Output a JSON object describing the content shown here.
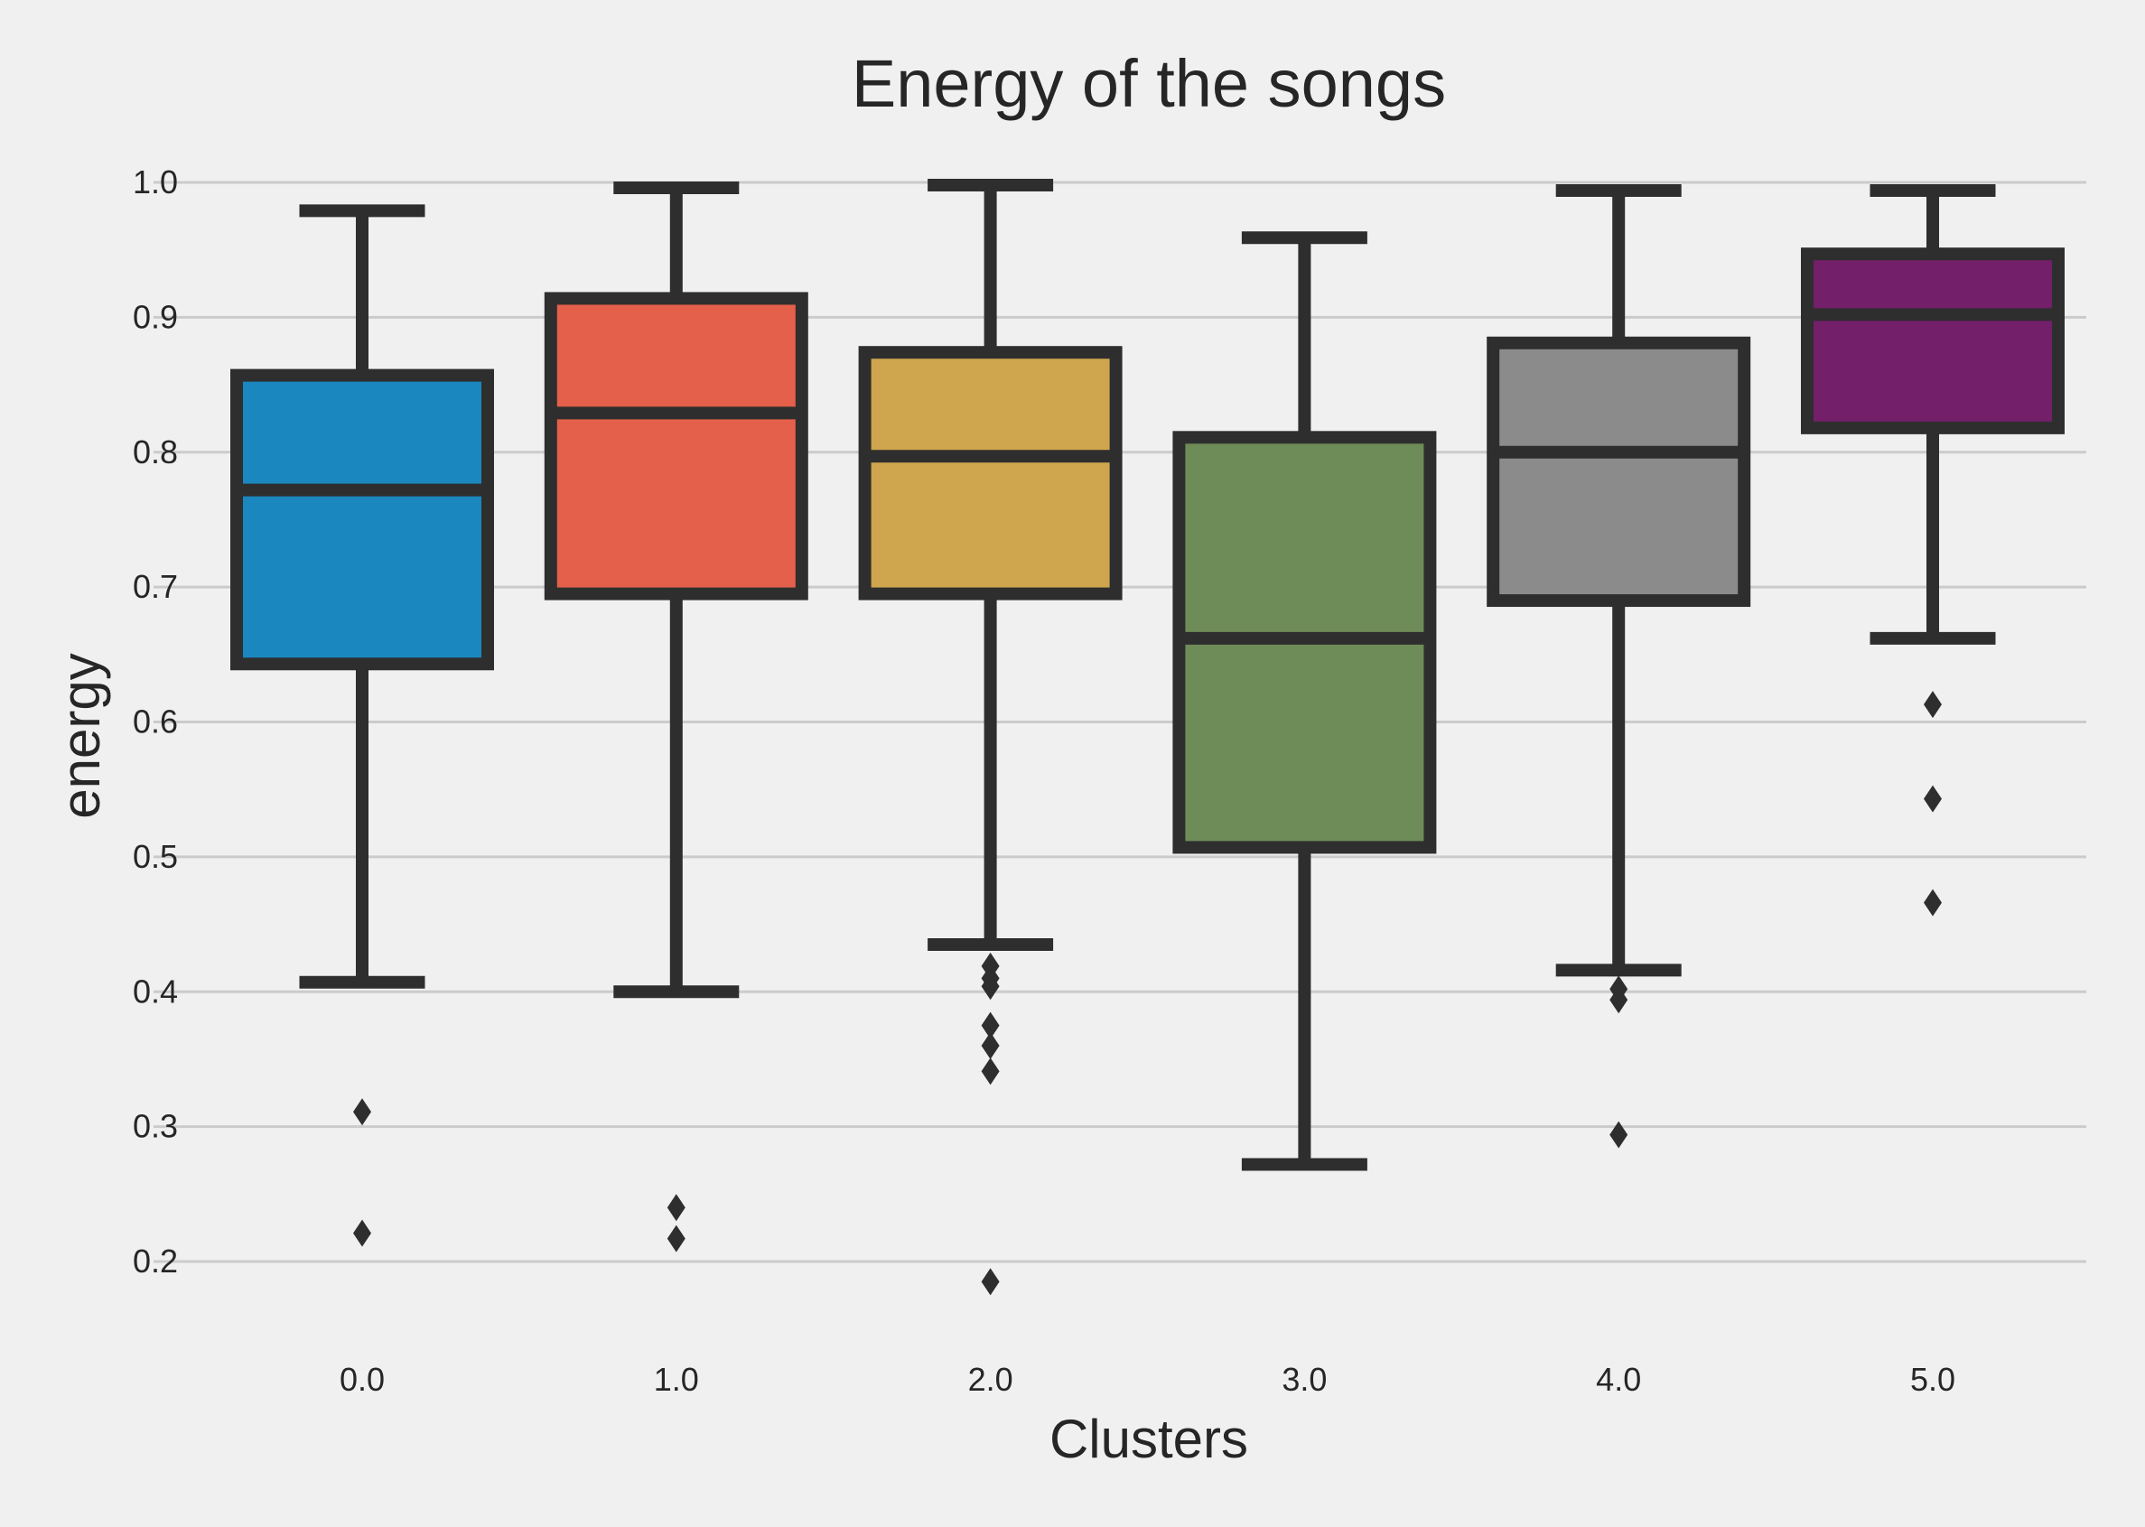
{
  "chart_data": {
    "type": "box",
    "title": "Energy of the songs",
    "xlabel": "Clusters",
    "ylabel": "energy",
    "categories": [
      "0.0",
      "1.0",
      "2.0",
      "3.0",
      "4.0",
      "5.0"
    ],
    "y_ticks": [
      "0.2",
      "0.3",
      "0.4",
      "0.5",
      "0.6",
      "0.7",
      "0.8",
      "0.9",
      "1.0"
    ],
    "ylim": [
      0.14,
      1.035
    ],
    "grid": "horizontal",
    "boxes": [
      {
        "category": "0.0",
        "color": "#1a87be",
        "whisker_low": 0.407,
        "q1": 0.643,
        "median": 0.772,
        "q3": 0.857,
        "whisker_high": 0.979,
        "outliers": [
          0.311,
          0.221
        ]
      },
      {
        "category": "1.0",
        "color": "#e4604a",
        "whisker_low": 0.4,
        "q1": 0.695,
        "median": 0.829,
        "q3": 0.914,
        "whisker_high": 0.996,
        "outliers": [
          0.24,
          0.217
        ]
      },
      {
        "category": "2.0",
        "color": "#cfa64e",
        "whisker_low": 0.435,
        "q1": 0.695,
        "median": 0.797,
        "q3": 0.874,
        "whisker_high": 0.998,
        "outliers": [
          0.419,
          0.41,
          0.404,
          0.375,
          0.36,
          0.341,
          0.185
        ]
      },
      {
        "category": "3.0",
        "color": "#6e8c58",
        "whisker_low": 0.272,
        "q1": 0.507,
        "median": 0.662,
        "q3": 0.811,
        "whisker_high": 0.959,
        "outliers": []
      },
      {
        "category": "4.0",
        "color": "#8b8b8b",
        "whisker_low": 0.416,
        "q1": 0.69,
        "median": 0.8,
        "q3": 0.881,
        "whisker_high": 0.994,
        "outliers": [
          0.402,
          0.394,
          0.294
        ]
      },
      {
        "category": "5.0",
        "color": "#731f6a",
        "whisker_low": 0.662,
        "q1": 0.818,
        "median": 0.902,
        "q3": 0.947,
        "whisker_high": 0.994,
        "outliers": [
          0.613,
          0.543,
          0.466
        ]
      }
    ]
  }
}
